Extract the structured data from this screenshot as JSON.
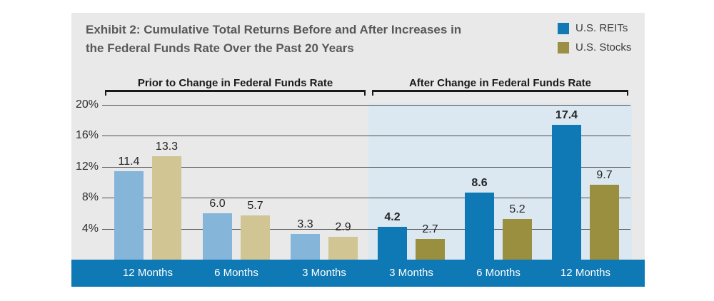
{
  "header": {
    "title_line1": "Exhibit 2: Cumulative Total Returns Before and After Increases in",
    "title_line2": "the Federal Funds Rate Over the Past 20 Years"
  },
  "legend": {
    "items": [
      {
        "label": "U.S. REITs",
        "color": "#117ab5"
      },
      {
        "label": "U.S. Stocks",
        "color": "#9a8f44"
      }
    ]
  },
  "chart_data": {
    "type": "bar",
    "title": "Exhibit 2: Cumulative Total Returns Before and After Increases in the Federal Funds Rate Over the Past 20 Years",
    "y_axis": {
      "ticks": [
        4,
        8,
        12,
        16,
        20
      ],
      "tick_suffix": "%",
      "ylim": [
        0,
        20
      ],
      "grid": true
    },
    "series": [
      {
        "name": "U.S. REITs",
        "color_prior": "#85b6da",
        "color_after": "#0e79b4"
      },
      {
        "name": "U.S. Stocks",
        "color_prior": "#d0c593",
        "color_after": "#9a8f3e"
      }
    ],
    "sections": [
      {
        "label": "Prior to Change in Federal Funds Rate",
        "highlighted": false,
        "groups": [
          {
            "category": "12 Months",
            "values": [
              11.4,
              13.3
            ]
          },
          {
            "category": "6 Months",
            "values": [
              6.0,
              5.7
            ]
          },
          {
            "category": "3 Months",
            "values": [
              3.3,
              2.9
            ]
          }
        ]
      },
      {
        "label": "After Change in Federal Funds Rate",
        "highlighted": true,
        "groups": [
          {
            "category": "3 Months",
            "values": [
              4.2,
              2.7
            ]
          },
          {
            "category": "6 Months",
            "values": [
              8.6,
              5.2
            ]
          },
          {
            "category": "12 Months",
            "values": [
              17.4,
              9.7
            ]
          }
        ]
      }
    ],
    "highlight_bg": "#dbe8f2",
    "axis_bar_color": "#0e79b4",
    "legend_position": "top-right"
  }
}
